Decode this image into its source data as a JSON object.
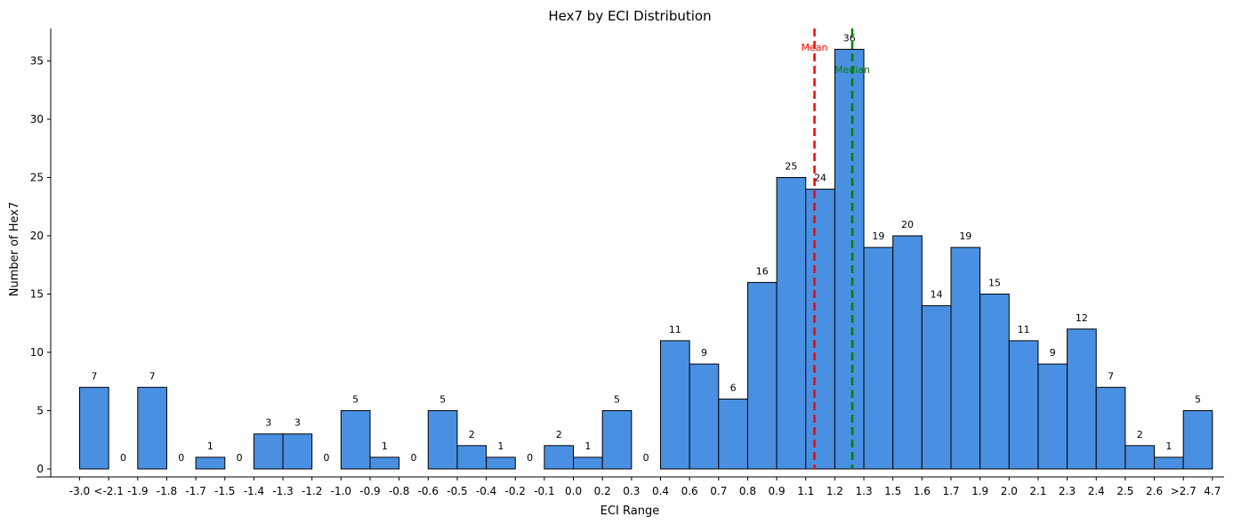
{
  "chart_data": {
    "type": "bar",
    "title": "Hex7 by ECI Distribution",
    "xlabel": "ECI Range",
    "ylabel": "Number of Hex7",
    "ylim": [
      0,
      38
    ],
    "yticks": [
      0,
      5,
      10,
      15,
      20,
      25,
      30,
      35
    ],
    "x_tick_labels": [
      "-3.0",
      "<-2.1",
      "-1.9",
      "-1.8",
      "-1.7",
      "-1.5",
      "-1.4",
      "-1.3",
      "-1.2",
      "-1.0",
      "-0.9",
      "-0.8",
      "-0.6",
      "-0.5",
      "-0.4",
      "-0.2",
      "-0.1",
      "0.0",
      "0.2",
      "0.3",
      "0.4",
      "0.6",
      "0.7",
      "0.8",
      "0.9",
      "1.1",
      "1.2",
      "1.3",
      "1.5",
      "1.6",
      "1.7",
      "1.9",
      "2.0",
      "2.1",
      "2.3",
      "2.4",
      "2.5",
      "2.6",
      ">2.7",
      "4.7"
    ],
    "values": [
      7,
      0,
      7,
      0,
      1,
      0,
      3,
      3,
      0,
      5,
      1,
      0,
      5,
      2,
      1,
      0,
      2,
      1,
      5,
      0,
      11,
      9,
      6,
      16,
      25,
      24,
      36,
      19,
      20,
      14,
      19,
      15,
      11,
      9,
      12,
      7,
      2,
      1,
      5
    ],
    "reference_lines": [
      {
        "label": "Mean",
        "x": 1.13,
        "color": "#ff0000",
        "style": "dashed"
      },
      {
        "label": "Median",
        "x": 1.26,
        "color": "#008000",
        "style": "dashed"
      }
    ],
    "bar_color": "#4a90e2",
    "edge_color": "#000000",
    "grid": false
  }
}
